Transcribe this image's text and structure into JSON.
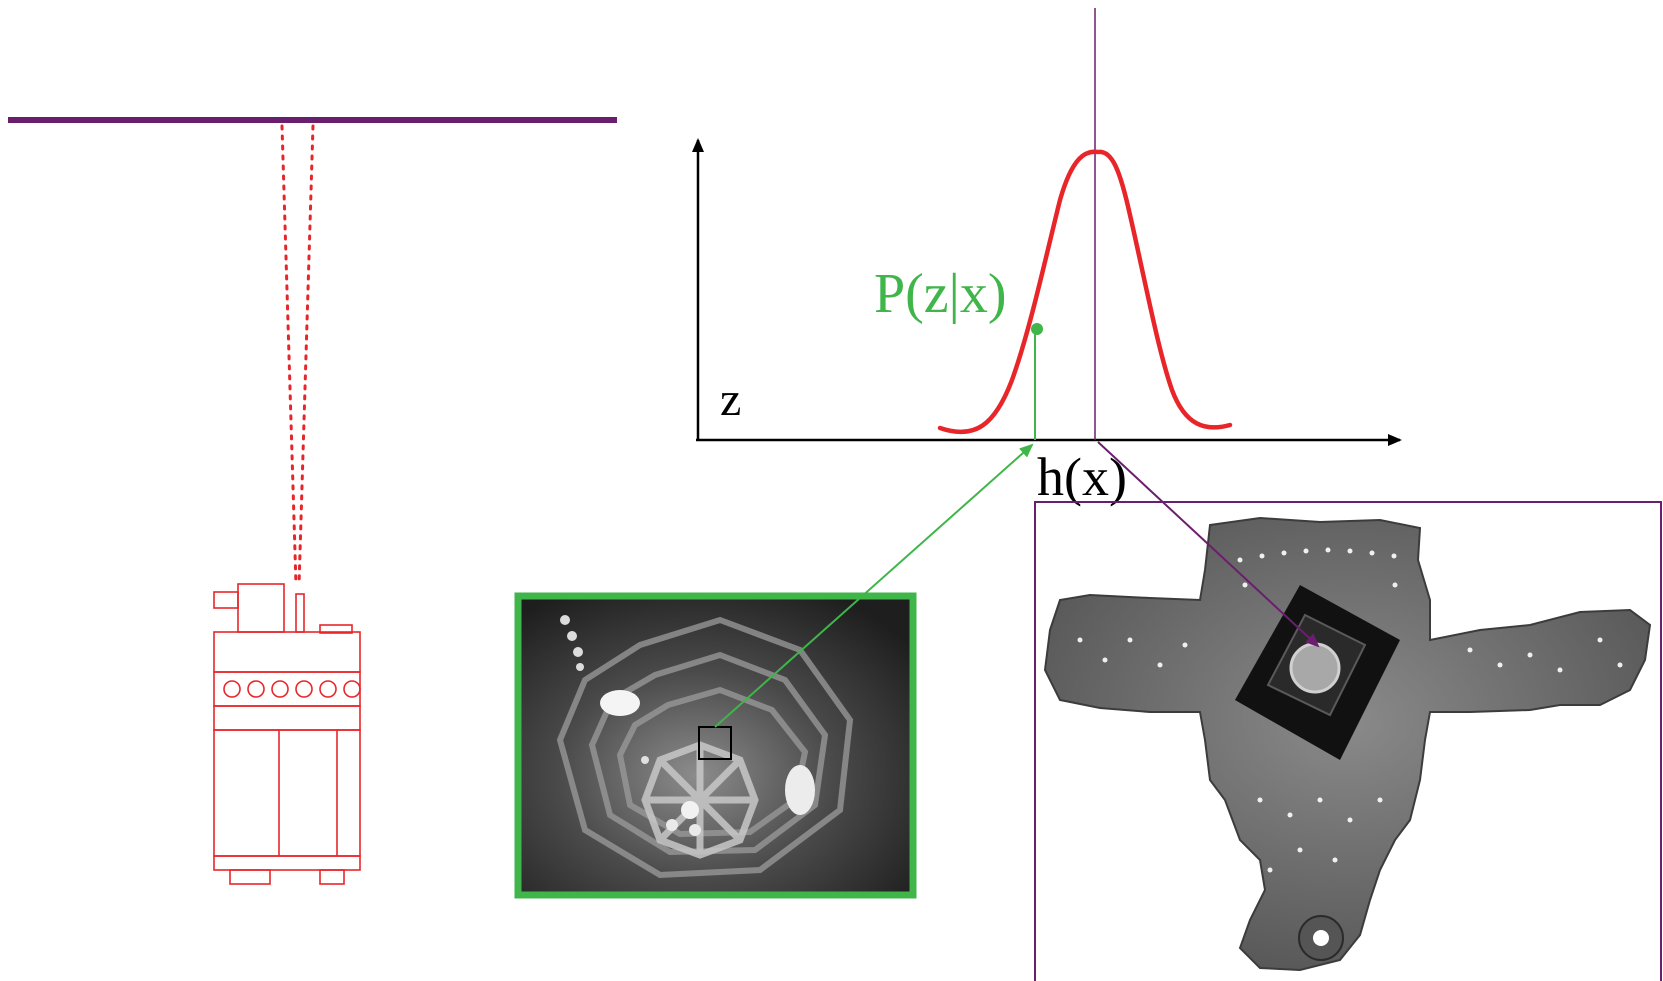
{
  "labels": {
    "probability": "P(z|x)",
    "measurement_axis": "z",
    "expected_measurement": "h(x)"
  },
  "colors": {
    "ceiling": "#6a1f6e",
    "robot": "#e8262a",
    "laser": "#e8262a",
    "gaussian": "#e8262a",
    "probability": "#3fb54a",
    "expected": "#6a1f6e",
    "axes": "#000000",
    "camera_frame": "#3fb54a",
    "map_frame": "#6a1f6e"
  },
  "icons": {
    "robot": "mobile-robot-icon",
    "camera_image": "ceiling-camera-image",
    "map_image": "ceiling-mosaic-map"
  }
}
